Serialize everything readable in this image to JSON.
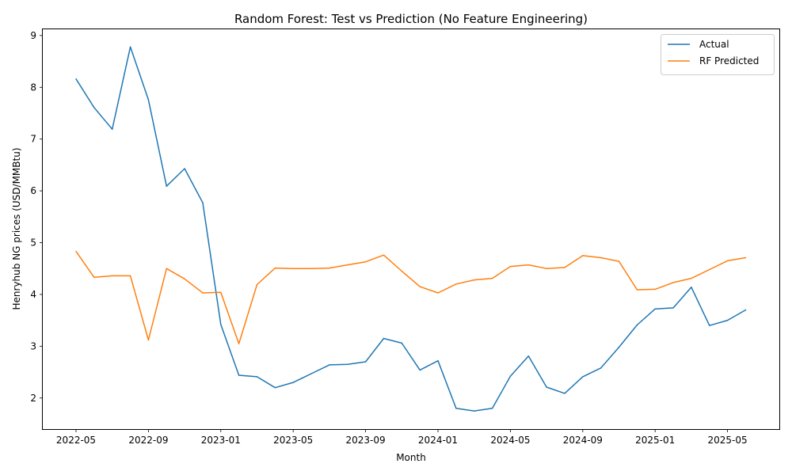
{
  "chart_data": {
    "type": "line",
    "title": "Random Forest: Test vs Prediction (No Feature Engineering)",
    "xlabel": "Month",
    "ylabel": "Henryhub NG prices (USD/MMBtu)",
    "x_ticks": [
      "2022-05",
      "2022-09",
      "2023-01",
      "2023-05",
      "2023-09",
      "2024-01",
      "2024-05",
      "2024-09",
      "2025-01",
      "2025-05"
    ],
    "y_ticks": [
      2,
      3,
      4,
      5,
      6,
      7,
      8,
      9
    ],
    "ylim": [
      1.4,
      9.12
    ],
    "legend_position": "top-right",
    "grid": false,
    "x": [
      "2022-05",
      "2022-06",
      "2022-07",
      "2022-08",
      "2022-09",
      "2022-10",
      "2022-11",
      "2022-12",
      "2023-01",
      "2023-02",
      "2023-03",
      "2023-04",
      "2023-05",
      "2023-06",
      "2023-07",
      "2023-08",
      "2023-09",
      "2023-10",
      "2023-11",
      "2023-12",
      "2024-01",
      "2024-02",
      "2024-03",
      "2024-04",
      "2024-05",
      "2024-06",
      "2024-07",
      "2024-08",
      "2024-09",
      "2024-10",
      "2024-11",
      "2024-12",
      "2025-01",
      "2025-02",
      "2025-03",
      "2025-04",
      "2025-05",
      "2025-06"
    ],
    "series": [
      {
        "name": "Actual",
        "color": "#1f77b4",
        "values": [
          8.16,
          7.61,
          7.19,
          8.78,
          7.76,
          6.09,
          6.43,
          5.77,
          3.42,
          2.44,
          2.41,
          2.2,
          2.3,
          2.47,
          2.64,
          2.65,
          2.7,
          3.15,
          3.06,
          2.54,
          2.72,
          1.8,
          1.75,
          1.8,
          2.42,
          2.81,
          2.21,
          2.09,
          2.41,
          2.58,
          2.98,
          3.41,
          3.72,
          3.74,
          4.14,
          3.4,
          3.5,
          3.7
        ]
      },
      {
        "name": "RF Predicted",
        "color": "#ff7f0e",
        "values": [
          4.83,
          4.33,
          4.36,
          4.36,
          3.12,
          4.5,
          4.3,
          4.03,
          4.04,
          3.05,
          4.19,
          4.51,
          4.5,
          4.5,
          4.51,
          4.57,
          4.63,
          4.76,
          4.45,
          4.15,
          4.03,
          4.2,
          4.28,
          4.31,
          4.54,
          4.57,
          4.5,
          4.52,
          4.75,
          4.71,
          4.64,
          4.09,
          4.1,
          4.23,
          4.31,
          4.48,
          4.65,
          4.71
        ]
      }
    ]
  }
}
